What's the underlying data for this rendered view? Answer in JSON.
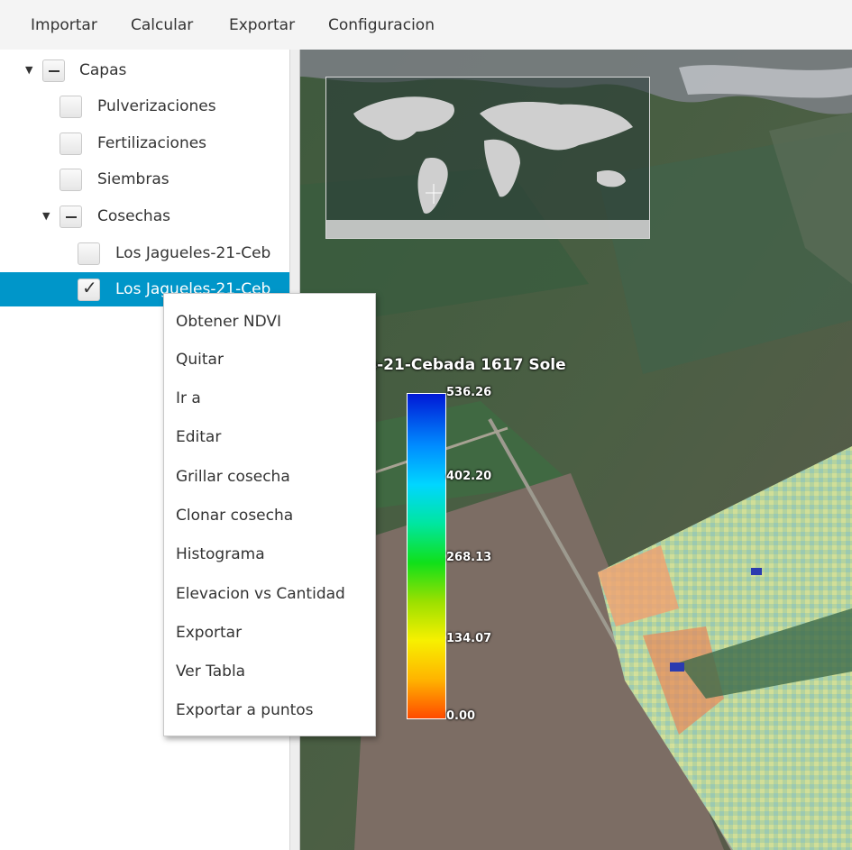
{
  "menubar": [
    "Importar",
    "Calcular",
    "Exportar",
    "Configuracion"
  ],
  "tree": [
    {
      "label": "Capas",
      "level": 0,
      "expanded": true,
      "state": "indeterminate",
      "selected": false
    },
    {
      "label": "Pulverizaciones",
      "level": 1,
      "state": "unchecked",
      "selected": false
    },
    {
      "label": "Fertilizaciones",
      "level": 1,
      "state": "unchecked",
      "selected": false
    },
    {
      "label": "Siembras",
      "level": 1,
      "state": "unchecked",
      "selected": false
    },
    {
      "label": "Cosechas",
      "level": 1,
      "expanded": true,
      "state": "indeterminate",
      "selected": false
    },
    {
      "label": "Los Jagueles-21-Ceb",
      "level": 2,
      "state": "unchecked",
      "selected": false
    },
    {
      "label": "Los Jagueles-21-Ceb",
      "level": 2,
      "state": "checked",
      "selected": true
    }
  ],
  "context_menu": [
    "Obtener NDVI",
    "Quitar",
    "Ir a",
    "Editar",
    "Grillar cosecha",
    "Clonar cosecha",
    "Histograma",
    "Elevacion vs Cantidad",
    "Exportar",
    "Ver Tabla",
    "Exportar a puntos"
  ],
  "map": {
    "legend_title": "s-21-Cebada 1617 Sole",
    "legend_ticks": [
      "536.26",
      "402.20",
      "268.13",
      "134.07",
      "0.00"
    ]
  },
  "colors": {
    "selection": "#0096c9",
    "legend_gradient": [
      "#0018d6",
      "#008cff",
      "#00d6ff",
      "#00e6a0",
      "#10e01a",
      "#9be000",
      "#f7f000",
      "#ffb400",
      "#ff4b00"
    ]
  }
}
